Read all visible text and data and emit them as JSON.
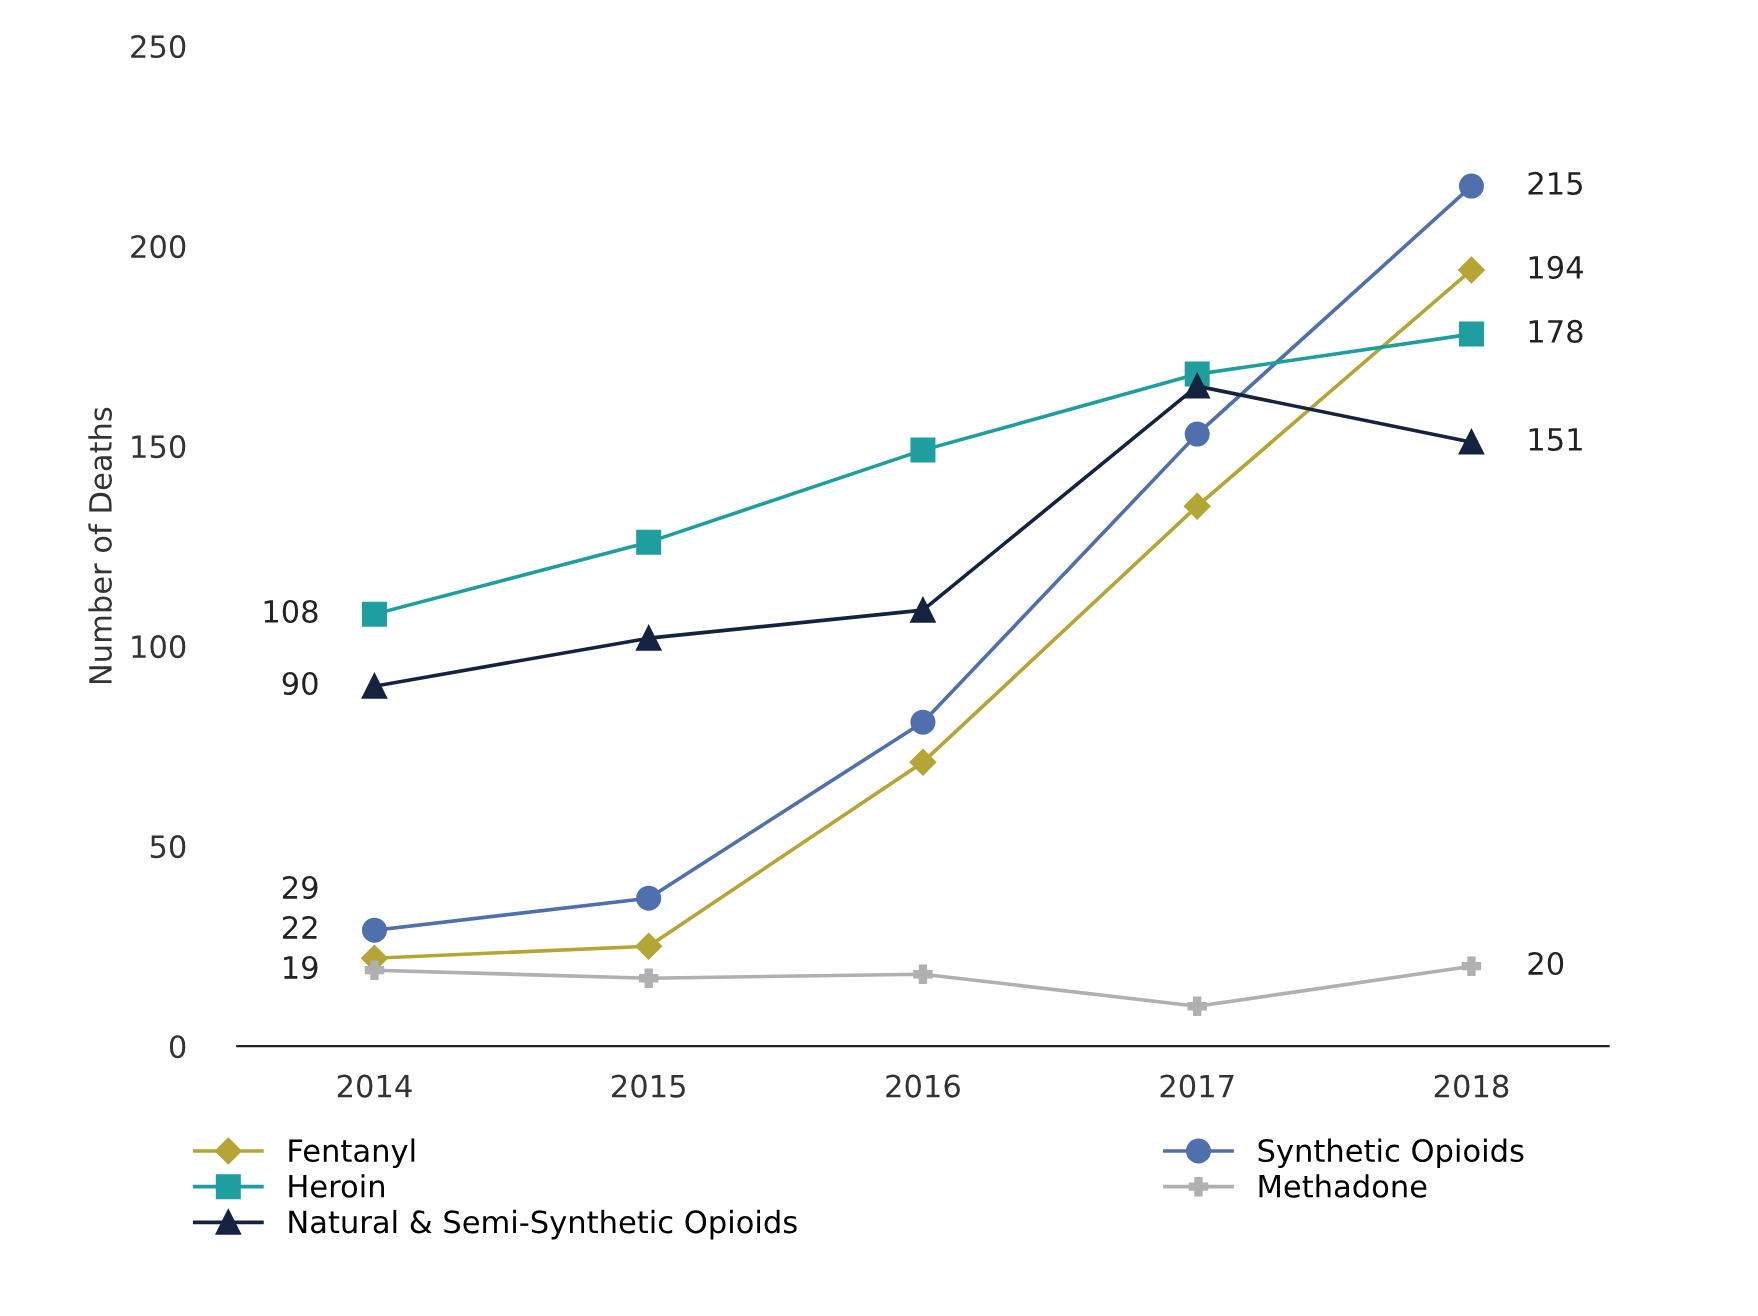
{
  "chart_data": {
    "type": "line",
    "ylabel": "Number of Deaths",
    "categories": [
      "2014",
      "2015",
      "2016",
      "2017",
      "2018"
    ],
    "ylim": [
      0,
      250
    ],
    "yticks": [
      0,
      50,
      100,
      150,
      200,
      250
    ],
    "grid": false,
    "legend": "bottom",
    "series": [
      {
        "name": "Fentanyl",
        "color": "#b5a534",
        "marker": "diamond",
        "values": [
          22,
          25,
          71,
          135,
          194
        ],
        "value_labels": [
          "22",
          null,
          null,
          null,
          "194"
        ]
      },
      {
        "name": "Synthetic Opioids",
        "color": "#4f6fad",
        "marker": "circle",
        "values": [
          29,
          37,
          81,
          153,
          215
        ],
        "value_labels": [
          "29",
          null,
          null,
          null,
          "215"
        ]
      },
      {
        "name": "Heroin",
        "color": "#1f9ea0",
        "marker": "square",
        "values": [
          108,
          126,
          149,
          168,
          178
        ],
        "value_labels": [
          "108",
          null,
          null,
          null,
          "178"
        ]
      },
      {
        "name": "Methadone",
        "color": "#b0b0b0",
        "marker": "cross",
        "values": [
          19,
          17,
          18,
          10,
          20
        ],
        "value_labels": [
          "19",
          null,
          null,
          null,
          "20"
        ]
      },
      {
        "name": "Natural & Semi-Synthetic Opioids",
        "color": "#14233f",
        "marker": "triangle",
        "values": [
          90,
          102,
          109,
          165,
          151
        ],
        "value_labels": [
          "90",
          null,
          null,
          null,
          "151"
        ]
      }
    ]
  }
}
